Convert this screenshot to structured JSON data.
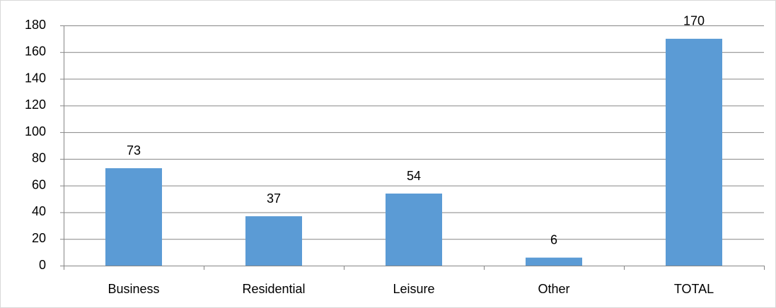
{
  "chart_data": {
    "type": "bar",
    "categories": [
      "Business",
      "Residential",
      "Leisure",
      "Other",
      "TOTAL"
    ],
    "values": [
      73,
      37,
      54,
      6,
      170
    ],
    "color": "#5b9bd5",
    "ylim": [
      0,
      180
    ],
    "yticks": [
      0,
      20,
      40,
      60,
      80,
      100,
      120,
      140,
      160,
      180
    ],
    "grid": true,
    "data_labels": true
  }
}
